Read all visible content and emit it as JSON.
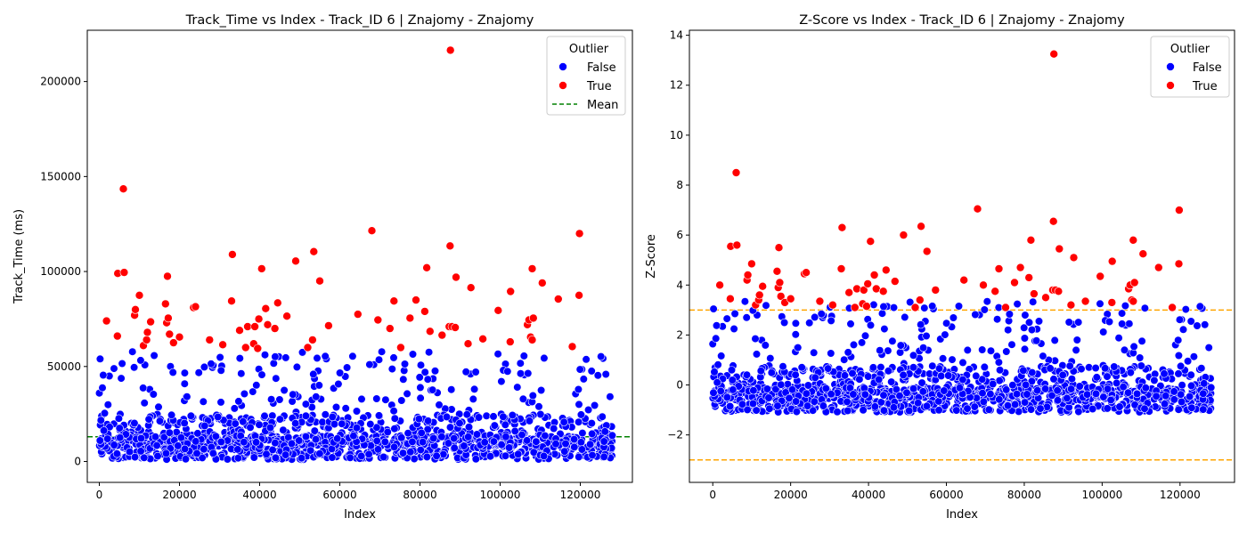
{
  "chart_data": [
    {
      "type": "scatter",
      "title": "Track_Time vs Index - Track_ID 6 | Znajomy - Znajomy",
      "xlabel": "Index",
      "ylabel": "Track_Time (ms)",
      "xlim": [
        -3000,
        133000
      ],
      "ylim": [
        -11000,
        227000
      ],
      "xticks": [
        0,
        20000,
        40000,
        60000,
        80000,
        100000,
        120000
      ],
      "xtick_labels": [
        "0",
        "20000",
        "40000",
        "60000",
        "80000",
        "100000",
        "120000"
      ],
      "yticks": [
        0,
        50000,
        100000,
        150000,
        200000
      ],
      "ytick_labels": [
        "0",
        "50000",
        "100000",
        "150000",
        "200000"
      ],
      "grid": false,
      "legend": {
        "title": "Outlier",
        "placement": "top-right",
        "entries": [
          {
            "label": "False",
            "kind": "marker",
            "color": "#0000ff"
          },
          {
            "label": "True",
            "kind": "marker",
            "color": "#ff0000"
          },
          {
            "label": "Mean",
            "kind": "dashed-line",
            "color": "#008000"
          }
        ]
      },
      "reference_lines": [
        {
          "y": 13000,
          "color": "#008000",
          "style": "dashed",
          "label": "Mean"
        }
      ],
      "series": [
        {
          "name": "True",
          "color": "#ff0000",
          "points": [
            [
              1800,
              74000
            ],
            [
              4500,
              66000
            ],
            [
              4600,
              99000
            ],
            [
              6000,
              143500
            ],
            [
              6200,
              99500
            ],
            [
              8800,
              77000
            ],
            [
              9000,
              80000
            ],
            [
              10000,
              87500
            ],
            [
              11000,
              61000
            ],
            [
              11800,
              64000
            ],
            [
              12000,
              68000
            ],
            [
              12800,
              73500
            ],
            [
              16500,
              83000
            ],
            [
              16800,
              73000
            ],
            [
              17000,
              97500
            ],
            [
              17200,
              75500
            ],
            [
              17500,
              67000
            ],
            [
              18500,
              62500
            ],
            [
              20000,
              65500
            ],
            [
              23500,
              81000
            ],
            [
              24000,
              81500
            ],
            [
              27500,
              64000
            ],
            [
              30800,
              61500
            ],
            [
              33000,
              84500
            ],
            [
              33200,
              109000
            ],
            [
              35000,
              69000
            ],
            [
              36500,
              60000
            ],
            [
              37000,
              71000
            ],
            [
              38500,
              62000
            ],
            [
              38800,
              71000
            ],
            [
              39500,
              59500
            ],
            [
              39800,
              75000
            ],
            [
              40500,
              101500
            ],
            [
              41500,
              80500
            ],
            [
              42000,
              72000
            ],
            [
              43800,
              70000
            ],
            [
              44500,
              83500
            ],
            [
              46800,
              76500
            ],
            [
              49000,
              105500
            ],
            [
              52000,
              60000
            ],
            [
              53200,
              64000
            ],
            [
              53500,
              110500
            ],
            [
              55000,
              95000
            ],
            [
              57200,
              71500
            ],
            [
              64500,
              77500
            ],
            [
              68000,
              121500
            ],
            [
              69500,
              74500
            ],
            [
              72500,
              70000
            ],
            [
              73500,
              84500
            ],
            [
              75200,
              60000
            ],
            [
              77500,
              75500
            ],
            [
              79000,
              85000
            ],
            [
              81200,
              79000
            ],
            [
              81700,
              102000
            ],
            [
              82500,
              68500
            ],
            [
              85500,
              66500
            ],
            [
              87300,
              71000
            ],
            [
              87500,
              113500
            ],
            [
              87600,
              216500
            ],
            [
              88000,
              71000
            ],
            [
              88800,
              70500
            ],
            [
              89000,
              97000
            ],
            [
              92000,
              62000
            ],
            [
              92700,
              91500
            ],
            [
              95700,
              64500
            ],
            [
              99500,
              79500
            ],
            [
              102500,
              63000
            ],
            [
              102600,
              89500
            ],
            [
              106800,
              72000
            ],
            [
              107200,
              74500
            ],
            [
              107600,
              65500
            ],
            [
              108000,
              64000
            ],
            [
              108000,
              101500
            ],
            [
              108300,
              75500
            ],
            [
              110500,
              94000
            ],
            [
              114500,
              85500
            ],
            [
              118000,
              60500
            ],
            [
              119700,
              87500
            ],
            [
              119800,
              120000
            ]
          ]
        }
      ]
    },
    {
      "type": "scatter",
      "title": "Z-Score vs Index - Track_ID 6 | Znajomy - Znajomy",
      "xlabel": "Index",
      "ylabel": "Z-Score",
      "xlim": [
        -6000,
        134000
      ],
      "ylim": [
        -3.9,
        14.2
      ],
      "xticks": [
        0,
        20000,
        40000,
        60000,
        80000,
        100000,
        120000
      ],
      "xtick_labels": [
        "0",
        "20000",
        "40000",
        "60000",
        "80000",
        "100000",
        "120000"
      ],
      "yticks": [
        -2,
        0,
        2,
        4,
        6,
        8,
        10,
        12,
        14
      ],
      "ytick_labels": [
        "−2",
        "0",
        "2",
        "4",
        "6",
        "8",
        "10",
        "12",
        "14"
      ],
      "grid": false,
      "legend": {
        "title": "Outlier",
        "placement": "top-right",
        "entries": [
          {
            "label": "False",
            "kind": "marker",
            "color": "#0000ff"
          },
          {
            "label": "True",
            "kind": "marker",
            "color": "#ff0000"
          }
        ]
      },
      "reference_lines": [
        {
          "y": 3,
          "color": "#ffa500",
          "style": "dashed"
        },
        {
          "y": -3,
          "color": "#ffa500",
          "style": "dashed"
        }
      ],
      "series": [
        {
          "name": "True",
          "color": "#ff0000",
          "points": [
            [
              1800,
              4.0
            ],
            [
              4500,
              3.45
            ],
            [
              4600,
              5.55
            ],
            [
              6000,
              8.5
            ],
            [
              6200,
              5.6
            ],
            [
              8800,
              4.2
            ],
            [
              9000,
              4.4
            ],
            [
              10000,
              4.85
            ],
            [
              11000,
              3.2
            ],
            [
              11800,
              3.4
            ],
            [
              12000,
              3.6
            ],
            [
              12800,
              3.95
            ],
            [
              16500,
              4.55
            ],
            [
              16800,
              3.9
            ],
            [
              17000,
              5.5
            ],
            [
              17200,
              4.1
            ],
            [
              17500,
              3.55
            ],
            [
              18500,
              3.3
            ],
            [
              20000,
              3.45
            ],
            [
              23500,
              4.45
            ],
            [
              24000,
              4.5
            ],
            [
              27500,
              3.35
            ],
            [
              30800,
              3.2
            ],
            [
              33000,
              4.65
            ],
            [
              33200,
              6.3
            ],
            [
              35000,
              3.7
            ],
            [
              36500,
              3.1
            ],
            [
              37000,
              3.85
            ],
            [
              38500,
              3.25
            ],
            [
              38800,
              3.8
            ],
            [
              39500,
              3.15
            ],
            [
              39800,
              4.05
            ],
            [
              40500,
              5.75
            ],
            [
              41500,
              4.4
            ],
            [
              42000,
              3.85
            ],
            [
              43800,
              3.75
            ],
            [
              44500,
              4.6
            ],
            [
              46800,
              4.15
            ],
            [
              49000,
              6.0
            ],
            [
              52000,
              3.1
            ],
            [
              53200,
              3.4
            ],
            [
              53500,
              6.35
            ],
            [
              55000,
              5.35
            ],
            [
              57200,
              3.8
            ],
            [
              64500,
              4.2
            ],
            [
              68000,
              7.05
            ],
            [
              69500,
              4.0
            ],
            [
              72500,
              3.75
            ],
            [
              73500,
              4.65
            ],
            [
              75200,
              3.1
            ],
            [
              77500,
              4.1
            ],
            [
              79000,
              4.7
            ],
            [
              81200,
              4.3
            ],
            [
              81700,
              5.8
            ],
            [
              82500,
              3.65
            ],
            [
              85500,
              3.5
            ],
            [
              87300,
              3.8
            ],
            [
              87500,
              6.55
            ],
            [
              87600,
              13.25
            ],
            [
              88000,
              3.8
            ],
            [
              88800,
              3.75
            ],
            [
              89000,
              5.45
            ],
            [
              92000,
              3.2
            ],
            [
              92700,
              5.1
            ],
            [
              95700,
              3.35
            ],
            [
              99500,
              4.35
            ],
            [
              102500,
              3.3
            ],
            [
              102600,
              4.95
            ],
            [
              106800,
              3.85
            ],
            [
              107200,
              4.0
            ],
            [
              107600,
              3.4
            ],
            [
              108000,
              3.35
            ],
            [
              108000,
              5.8
            ],
            [
              108300,
              4.1
            ],
            [
              110500,
              5.25
            ],
            [
              114500,
              4.7
            ],
            [
              118000,
              3.1
            ],
            [
              119700,
              4.85
            ],
            [
              119800,
              7.0
            ]
          ]
        }
      ]
    }
  ]
}
